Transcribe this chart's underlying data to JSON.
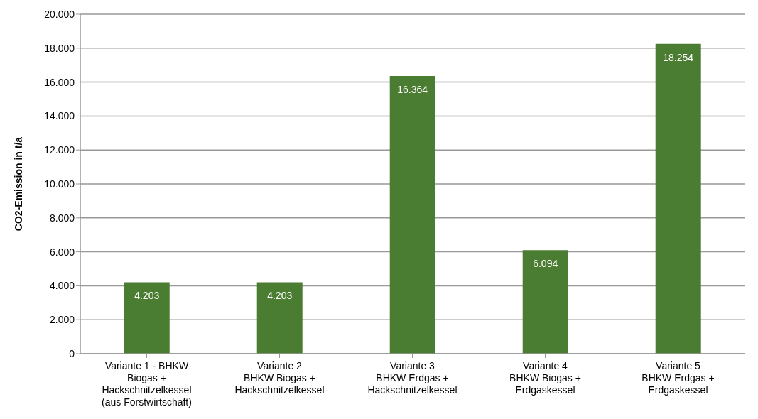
{
  "chart_data": {
    "type": "bar",
    "ylabel": "CO2-Emission in t/a",
    "categories": [
      "Variante 1 - BHKW\nBiogas +\nHackschnitzelkessel\n(aus Forstwirtschaft)",
      "Variante 2\nBHKW Biogas +\nHackschnitzelkessel",
      "Variante 3\nBHKW Erdgas +\nHackschnitzelkessel",
      "Variante 4\nBHKW Biogas +\nErdgaskessel",
      "Variante 5\nBHKW Erdgas +\nErdgaskessel"
    ],
    "values": [
      4203,
      4203,
      16364,
      6094,
      18254
    ],
    "value_labels": [
      "4.203",
      "4.203",
      "16.364",
      "6.094",
      "18.254"
    ],
    "color": "#4a7c31",
    "ylim": [
      0,
      20000
    ],
    "yticks": [
      {
        "value": 0,
        "label": "0"
      },
      {
        "value": 2000,
        "label": "2.000"
      },
      {
        "value": 4000,
        "label": "4.000"
      },
      {
        "value": 6000,
        "label": "6.000"
      },
      {
        "value": 8000,
        "label": "8.000"
      },
      {
        "value": 10000,
        "label": "10.000"
      },
      {
        "value": 12000,
        "label": "12.000"
      },
      {
        "value": 14000,
        "label": "14.000"
      },
      {
        "value": 16000,
        "label": "16.000"
      },
      {
        "value": 18000,
        "label": "18.000"
      },
      {
        "value": 20000,
        "label": "20.000"
      }
    ],
    "grid": "y",
    "legend": false
  }
}
